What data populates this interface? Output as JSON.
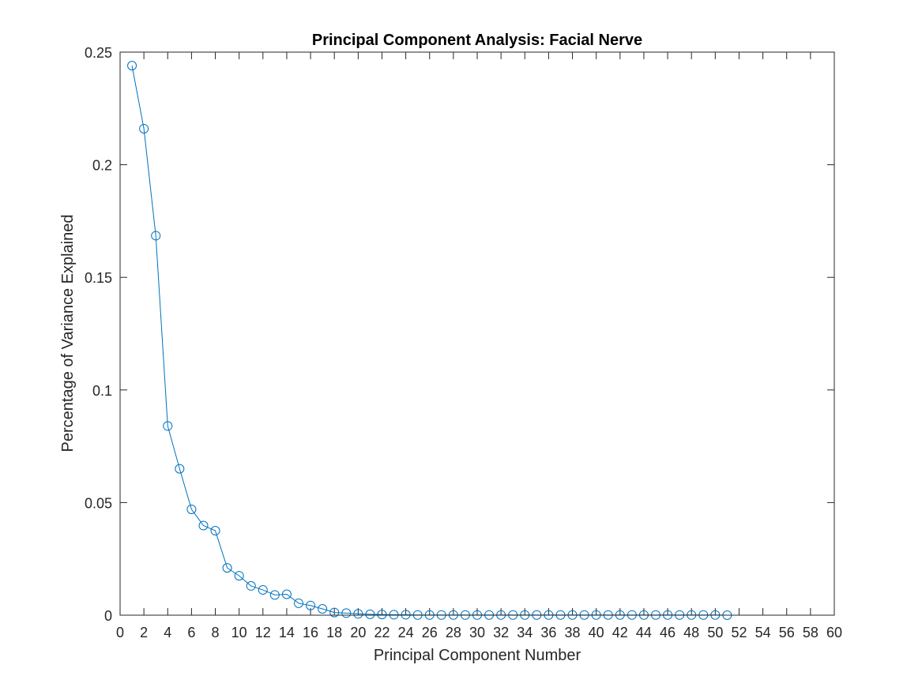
{
  "chart_data": {
    "type": "line",
    "title": "Principal Component Analysis: Facial Nerve",
    "xlabel": "Principal Component Number",
    "ylabel": "Percentage of Variance Explained",
    "xlim": [
      0,
      60
    ],
    "ylim": [
      0,
      0.25
    ],
    "xticks": [
      0,
      2,
      4,
      6,
      8,
      10,
      12,
      14,
      16,
      18,
      20,
      22,
      24,
      26,
      28,
      30,
      32,
      34,
      36,
      38,
      40,
      42,
      44,
      46,
      48,
      50,
      52,
      54,
      56,
      58,
      60
    ],
    "yticks": [
      0,
      0.05,
      0.1,
      0.15,
      0.2,
      0.25
    ],
    "xtick_labels": [
      "0",
      "2",
      "4",
      "6",
      "8",
      "10",
      "12",
      "14",
      "16",
      "18",
      "20",
      "22",
      "24",
      "26",
      "28",
      "30",
      "32",
      "34",
      "36",
      "38",
      "40",
      "42",
      "44",
      "46",
      "48",
      "50",
      "52",
      "54",
      "56",
      "58",
      "60"
    ],
    "ytick_labels": [
      "0",
      "0.05",
      "0.1",
      "0.15",
      "0.2",
      "0.25"
    ],
    "grid": false,
    "marker": "circle",
    "color": "#0072BD",
    "series": [
      {
        "x": [
          1,
          2,
          3,
          4,
          5,
          6,
          7,
          8,
          9,
          10,
          11,
          12,
          13,
          14,
          15,
          16,
          17,
          18,
          19,
          20,
          21,
          22,
          23,
          24,
          25,
          26,
          27,
          28,
          29,
          30,
          31,
          32,
          33,
          34,
          35,
          36,
          37,
          38,
          39,
          40,
          41,
          42,
          43,
          44,
          45,
          46,
          47,
          48,
          49,
          50,
          51
        ],
        "values": [
          0.244,
          0.216,
          0.1685,
          0.084,
          0.065,
          0.047,
          0.0398,
          0.0375,
          0.021,
          0.0175,
          0.013,
          0.0112,
          0.009,
          0.0093,
          0.0053,
          0.0043,
          0.0028,
          0.0012,
          0.0009,
          0.0006,
          0.0004,
          0.0003,
          0.0002,
          0.0002,
          0.0001,
          0.0001,
          0.0001,
          0.0001,
          0.0001,
          0.0001,
          0.0001,
          0.0001,
          0.0001,
          0.0001,
          0.0001,
          0.0001,
          0.0001,
          0.0001,
          0.0001,
          0.0001,
          0.0001,
          0.0001,
          0.0001,
          0.0001,
          0.0001,
          0.0001,
          0.0001,
          0.0001,
          0.0001,
          0.0001,
          0.0
        ]
      }
    ]
  }
}
